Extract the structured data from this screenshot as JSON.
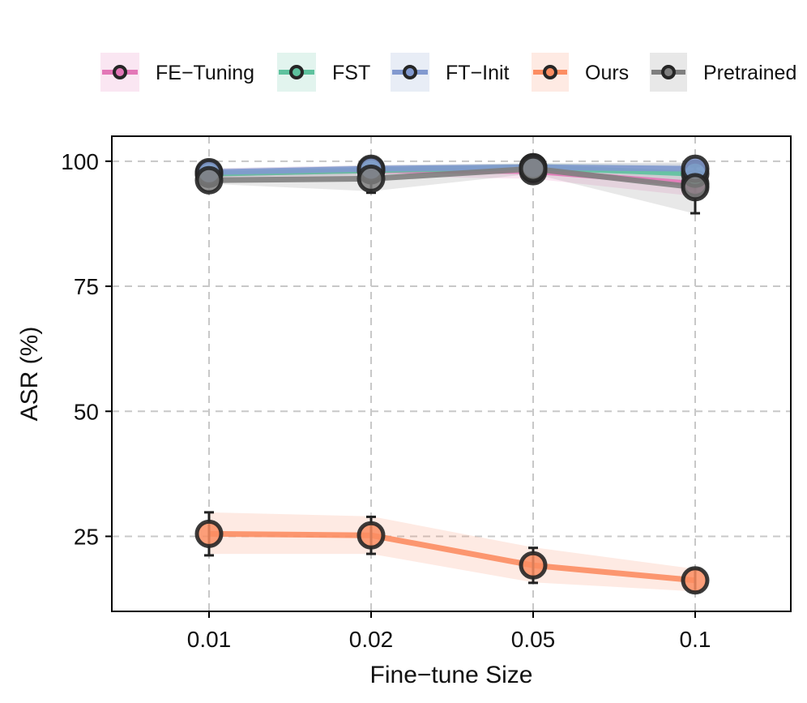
{
  "chart_data": {
    "type": "line",
    "title": "",
    "xlabel": "Fine−tune Size",
    "ylabel": "ASR (%)",
    "categories": [
      "0.01",
      "0.02",
      "0.05",
      "0.1"
    ],
    "yticks": [
      "25",
      "50",
      "75",
      "100"
    ],
    "ylim": [
      10,
      105
    ],
    "grid": true,
    "legend_position": "top",
    "series": [
      {
        "name": "FE−Tuning",
        "color": "#e377b7",
        "values": [
          97.5,
          98.2,
          98.0,
          95.5
        ],
        "lower": [
          96.5,
          97.0,
          96.5,
          93.0
        ],
        "upper": [
          98.5,
          99.2,
          99.5,
          98.0
        ],
        "err": [
          1.0,
          1.0,
          1.2,
          2.0
        ]
      },
      {
        "name": "FST",
        "color": "#5ec29e",
        "values": [
          97.5,
          98.2,
          98.8,
          97.5
        ],
        "lower": [
          96.8,
          97.2,
          98.0,
          96.0
        ],
        "upper": [
          98.2,
          99.2,
          99.6,
          99.0
        ],
        "err": [
          0.8,
          0.9,
          0.8,
          1.5
        ]
      },
      {
        "name": "FT−Init",
        "color": "#8299cf",
        "values": [
          97.8,
          98.5,
          98.8,
          98.5
        ],
        "lower": [
          97.0,
          97.8,
          98.0,
          97.5
        ],
        "upper": [
          98.6,
          99.2,
          99.6,
          99.5
        ],
        "err": [
          0.8,
          0.8,
          0.8,
          1.0
        ]
      },
      {
        "name": "Ours",
        "color": "#fc8d62",
        "values": [
          25.5,
          25.2,
          19.2,
          16.2
        ],
        "lower": [
          21.5,
          21.5,
          15.8,
          14.0
        ],
        "upper": [
          29.8,
          29.0,
          22.8,
          18.5
        ],
        "err": [
          4.3,
          3.7,
          3.5,
          2.2
        ]
      },
      {
        "name": "Pretrained",
        "color": "#7f7f7f",
        "values": [
          96.2,
          96.5,
          98.5,
          94.8
        ],
        "lower": [
          95.5,
          94.0,
          97.5,
          89.5
        ],
        "upper": [
          97.0,
          98.8,
          99.5,
          99.8
        ],
        "err": [
          0.8,
          2.8,
          1.2,
          5.2
        ]
      }
    ]
  }
}
